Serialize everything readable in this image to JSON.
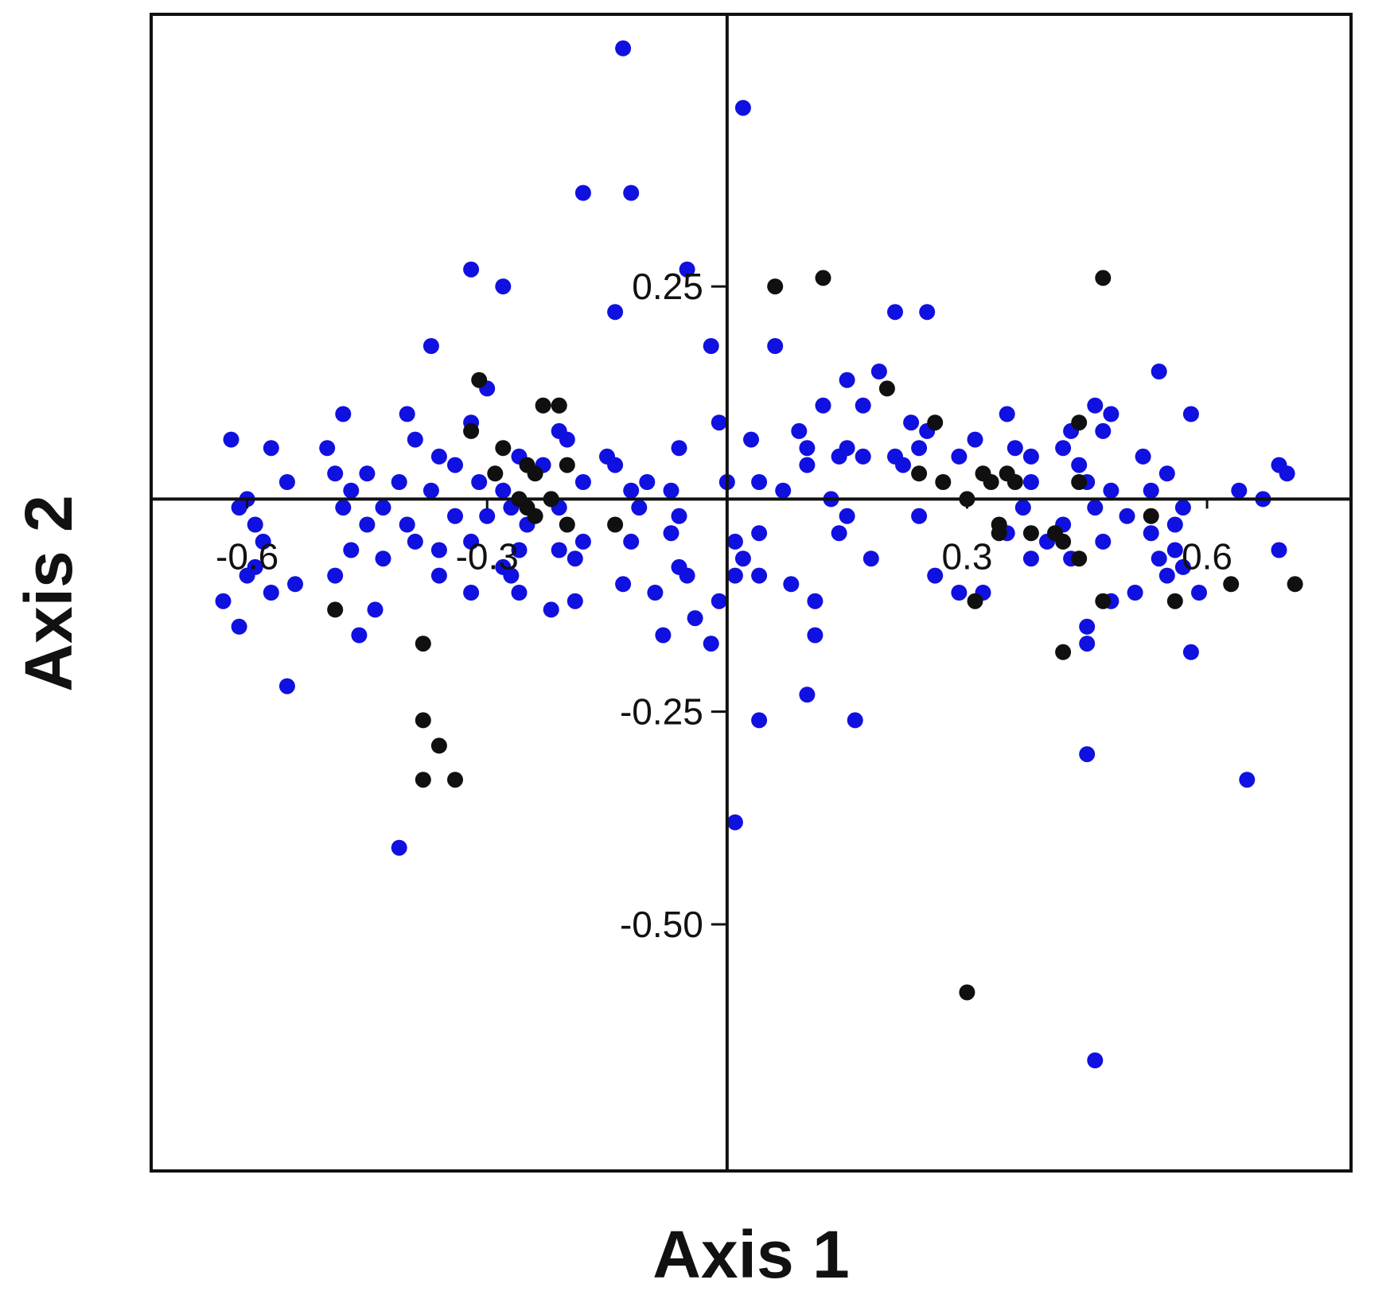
{
  "chart_data": {
    "type": "scatter",
    "title": "",
    "xlabel": "Axis 1",
    "ylabel": "Axis 2",
    "xlim": [
      -0.72,
      0.78
    ],
    "ylim": [
      -0.79,
      0.57
    ],
    "x_ticks": [
      {
        "value": -0.6,
        "label": "-0.6"
      },
      {
        "value": -0.3,
        "label": "-0.3"
      },
      {
        "value": 0.3,
        "label": "0.3"
      },
      {
        "value": 0.6,
        "label": "0.6"
      }
    ],
    "y_ticks": [
      {
        "value": 0.25,
        "label": "0.25"
      },
      {
        "value": -0.25,
        "label": "-0.25"
      },
      {
        "value": -0.5,
        "label": "-0.50"
      }
    ],
    "grid": false,
    "colors": {
      "blue": "#1010e0",
      "black": "#101010"
    },
    "series": [
      {
        "color": "#1010e0",
        "points": [
          [
            -0.13,
            0.53
          ],
          [
            0.02,
            0.46
          ],
          [
            -0.18,
            0.36
          ],
          [
            -0.12,
            0.36
          ],
          [
            -0.05,
            0.27
          ],
          [
            -0.32,
            0.27
          ],
          [
            -0.28,
            0.25
          ],
          [
            -0.14,
            0.22
          ],
          [
            0.21,
            0.22
          ],
          [
            0.25,
            0.22
          ],
          [
            -0.37,
            0.18
          ],
          [
            -0.02,
            0.18
          ],
          [
            0.06,
            0.18
          ],
          [
            0.19,
            0.15
          ],
          [
            0.15,
            0.14
          ],
          [
            0.54,
            0.15
          ],
          [
            -0.3,
            0.13
          ],
          [
            -0.21,
            0.11
          ],
          [
            0.12,
            0.11
          ],
          [
            0.17,
            0.11
          ],
          [
            0.35,
            0.1
          ],
          [
            0.46,
            0.11
          ],
          [
            0.48,
            0.1
          ],
          [
            0.58,
            0.1
          ],
          [
            -0.48,
            0.1
          ],
          [
            -0.4,
            0.1
          ],
          [
            -0.32,
            0.09
          ],
          [
            -0.21,
            0.08
          ],
          [
            -0.01,
            0.09
          ],
          [
            0.09,
            0.08
          ],
          [
            0.23,
            0.09
          ],
          [
            0.25,
            0.08
          ],
          [
            0.43,
            0.08
          ],
          [
            0.47,
            0.08
          ],
          [
            -0.62,
            0.07
          ],
          [
            -0.57,
            0.06
          ],
          [
            -0.5,
            0.06
          ],
          [
            -0.39,
            0.07
          ],
          [
            -0.2,
            0.07
          ],
          [
            -0.06,
            0.06
          ],
          [
            0.03,
            0.07
          ],
          [
            0.1,
            0.06
          ],
          [
            0.15,
            0.06
          ],
          [
            0.24,
            0.06
          ],
          [
            0.31,
            0.07
          ],
          [
            0.36,
            0.06
          ],
          [
            0.42,
            0.06
          ],
          [
            -0.36,
            0.05
          ],
          [
            -0.26,
            0.05
          ],
          [
            -0.15,
            0.05
          ],
          [
            0.14,
            0.05
          ],
          [
            0.17,
            0.05
          ],
          [
            0.21,
            0.05
          ],
          [
            0.29,
            0.05
          ],
          [
            0.38,
            0.05
          ],
          [
            0.52,
            0.05
          ],
          [
            0.69,
            0.04
          ],
          [
            -0.45,
            0.03
          ],
          [
            -0.34,
            0.04
          ],
          [
            -0.23,
            0.04
          ],
          [
            -0.14,
            0.04
          ],
          [
            0.1,
            0.04
          ],
          [
            0.22,
            0.04
          ],
          [
            0.44,
            0.04
          ],
          [
            -0.55,
            0.02
          ],
          [
            -0.49,
            0.03
          ],
          [
            -0.41,
            0.02
          ],
          [
            -0.31,
            0.02
          ],
          [
            -0.18,
            0.02
          ],
          [
            -0.1,
            0.02
          ],
          [
            0.0,
            0.02
          ],
          [
            0.04,
            0.02
          ],
          [
            0.07,
            0.01
          ],
          [
            0.38,
            0.02
          ],
          [
            0.45,
            0.02
          ],
          [
            0.55,
            0.03
          ],
          [
            0.7,
            0.03
          ],
          [
            -0.6,
            0.0
          ],
          [
            -0.47,
            0.01
          ],
          [
            -0.37,
            0.01
          ],
          [
            -0.28,
            0.01
          ],
          [
            -0.22,
            0.0
          ],
          [
            -0.12,
            0.01
          ],
          [
            -0.07,
            0.01
          ],
          [
            0.13,
            0.0
          ],
          [
            0.48,
            0.01
          ],
          [
            0.53,
            0.01
          ],
          [
            0.64,
            0.01
          ],
          [
            0.67,
            0.0
          ],
          [
            -0.61,
            -0.01
          ],
          [
            -0.48,
            -0.01
          ],
          [
            -0.43,
            -0.01
          ],
          [
            -0.34,
            -0.02
          ],
          [
            -0.27,
            -0.01
          ],
          [
            -0.21,
            -0.01
          ],
          [
            -0.11,
            -0.01
          ],
          [
            -0.06,
            -0.02
          ],
          [
            0.15,
            -0.02
          ],
          [
            0.37,
            -0.01
          ],
          [
            0.46,
            -0.01
          ],
          [
            0.57,
            -0.01
          ],
          [
            -0.59,
            -0.03
          ],
          [
            -0.45,
            -0.03
          ],
          [
            -0.4,
            -0.03
          ],
          [
            -0.3,
            -0.02
          ],
          [
            -0.25,
            -0.03
          ],
          [
            0.24,
            -0.02
          ],
          [
            0.42,
            -0.03
          ],
          [
            0.5,
            -0.02
          ],
          [
            0.56,
            -0.03
          ],
          [
            -0.58,
            -0.05
          ],
          [
            -0.39,
            -0.05
          ],
          [
            -0.32,
            -0.05
          ],
          [
            -0.18,
            -0.05
          ],
          [
            -0.07,
            -0.04
          ],
          [
            0.04,
            -0.04
          ],
          [
            0.14,
            -0.04
          ],
          [
            0.35,
            -0.04
          ],
          [
            0.4,
            -0.05
          ],
          [
            0.53,
            -0.04
          ],
          [
            -0.47,
            -0.06
          ],
          [
            -0.36,
            -0.06
          ],
          [
            -0.26,
            -0.06
          ],
          [
            -0.21,
            -0.06
          ],
          [
            -0.12,
            -0.05
          ],
          [
            0.01,
            -0.05
          ],
          [
            0.47,
            -0.05
          ],
          [
            0.56,
            -0.06
          ],
          [
            0.69,
            -0.06
          ],
          [
            -0.59,
            -0.08
          ],
          [
            -0.43,
            -0.07
          ],
          [
            -0.28,
            -0.08
          ],
          [
            -0.19,
            -0.07
          ],
          [
            -0.06,
            -0.08
          ],
          [
            0.02,
            -0.07
          ],
          [
            0.18,
            -0.07
          ],
          [
            0.38,
            -0.07
          ],
          [
            0.43,
            -0.07
          ],
          [
            0.54,
            -0.07
          ],
          [
            0.57,
            -0.08
          ],
          [
            -0.6,
            -0.09
          ],
          [
            -0.54,
            -0.1
          ],
          [
            -0.49,
            -0.09
          ],
          [
            -0.36,
            -0.09
          ],
          [
            -0.27,
            -0.09
          ],
          [
            -0.13,
            -0.1
          ],
          [
            -0.05,
            -0.09
          ],
          [
            0.01,
            -0.09
          ],
          [
            0.04,
            -0.09
          ],
          [
            0.26,
            -0.09
          ],
          [
            0.55,
            -0.09
          ],
          [
            -0.57,
            -0.11
          ],
          [
            -0.32,
            -0.11
          ],
          [
            -0.26,
            -0.11
          ],
          [
            -0.09,
            -0.11
          ],
          [
            0.08,
            -0.1
          ],
          [
            0.29,
            -0.11
          ],
          [
            0.32,
            -0.11
          ],
          [
            0.51,
            -0.11
          ],
          [
            0.59,
            -0.11
          ],
          [
            -0.63,
            -0.12
          ],
          [
            -0.19,
            -0.12
          ],
          [
            -0.01,
            -0.12
          ],
          [
            0.11,
            -0.12
          ],
          [
            0.48,
            -0.12
          ],
          [
            -0.44,
            -0.13
          ],
          [
            -0.22,
            -0.13
          ],
          [
            -0.04,
            -0.14
          ],
          [
            -0.61,
            -0.15
          ],
          [
            -0.46,
            -0.16
          ],
          [
            -0.08,
            -0.16
          ],
          [
            -0.02,
            -0.17
          ],
          [
            0.11,
            -0.16
          ],
          [
            0.45,
            -0.15
          ],
          [
            0.45,
            -0.17
          ],
          [
            -0.55,
            -0.22
          ],
          [
            0.58,
            -0.18
          ],
          [
            0.1,
            -0.23
          ],
          [
            0.04,
            -0.26
          ],
          [
            0.16,
            -0.26
          ],
          [
            0.45,
            -0.3
          ],
          [
            0.65,
            -0.33
          ],
          [
            0.01,
            -0.38
          ],
          [
            -0.41,
            -0.41
          ],
          [
            0.46,
            -0.66
          ]
        ]
      },
      {
        "color": "#101010",
        "points": [
          [
            0.06,
            0.25
          ],
          [
            0.12,
            0.26
          ],
          [
            0.47,
            0.26
          ],
          [
            -0.31,
            0.14
          ],
          [
            -0.23,
            0.11
          ],
          [
            -0.21,
            0.11
          ],
          [
            0.2,
            0.13
          ],
          [
            0.26,
            0.09
          ],
          [
            0.44,
            0.09
          ],
          [
            -0.32,
            0.08
          ],
          [
            -0.28,
            0.06
          ],
          [
            -0.29,
            0.03
          ],
          [
            -0.25,
            0.04
          ],
          [
            -0.24,
            0.03
          ],
          [
            -0.2,
            0.04
          ],
          [
            0.24,
            0.03
          ],
          [
            0.27,
            0.02
          ],
          [
            0.32,
            0.03
          ],
          [
            0.35,
            0.03
          ],
          [
            0.33,
            0.02
          ],
          [
            0.36,
            0.02
          ],
          [
            0.44,
            0.02
          ],
          [
            -0.26,
            0.0
          ],
          [
            -0.25,
            -0.01
          ],
          [
            -0.22,
            0.0
          ],
          [
            0.3,
            0.0
          ],
          [
            0.53,
            -0.02
          ],
          [
            -0.24,
            -0.02
          ],
          [
            -0.2,
            -0.03
          ],
          [
            -0.14,
            -0.03
          ],
          [
            0.34,
            -0.03
          ],
          [
            0.34,
            -0.04
          ],
          [
            0.38,
            -0.04
          ],
          [
            0.41,
            -0.04
          ],
          [
            0.42,
            -0.05
          ],
          [
            0.44,
            -0.07
          ],
          [
            0.63,
            -0.1
          ],
          [
            0.71,
            -0.1
          ],
          [
            -0.49,
            -0.13
          ],
          [
            0.31,
            -0.12
          ],
          [
            0.47,
            -0.12
          ],
          [
            0.56,
            -0.12
          ],
          [
            -0.38,
            -0.17
          ],
          [
            0.42,
            -0.18
          ],
          [
            -0.38,
            -0.26
          ],
          [
            -0.36,
            -0.29
          ],
          [
            -0.38,
            -0.33
          ],
          [
            -0.34,
            -0.33
          ],
          [
            0.3,
            -0.58
          ]
        ]
      }
    ]
  }
}
